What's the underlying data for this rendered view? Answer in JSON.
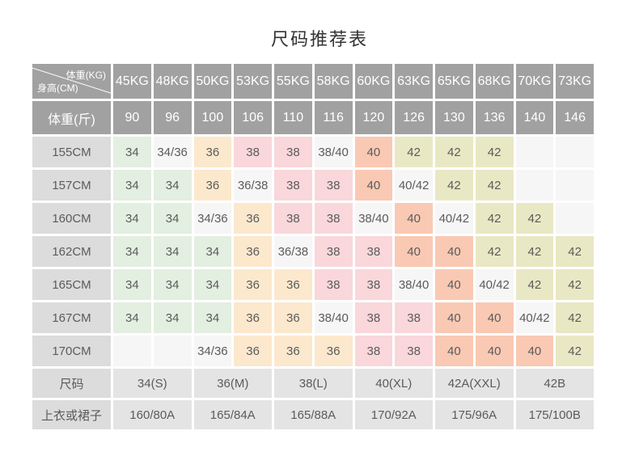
{
  "title": "尺码推荐表",
  "corner": {
    "top_right": "体重(KG)",
    "bottom_left": "身高(CM)"
  },
  "chart_data": {
    "type": "table",
    "title": "尺码推荐表",
    "col_axis": "体重(KG)",
    "row_axis": "身高(CM)",
    "columns_kg": [
      "45KG",
      "48KG",
      "50KG",
      "53KG",
      "55KG",
      "58KG",
      "60KG",
      "63KG",
      "65KG",
      "68KG",
      "70KG",
      "73KG"
    ],
    "weight_jin_label": "体重(斤)",
    "weight_jin_values": [
      "90",
      "96",
      "100",
      "106",
      "110",
      "116",
      "120",
      "126",
      "130",
      "136",
      "140",
      "146"
    ],
    "rows": [
      {
        "height": "155CM",
        "sizes": [
          "34",
          "34/36",
          "36",
          "38",
          "38",
          "38/40",
          "40",
          "42",
          "42",
          "42",
          "",
          ""
        ]
      },
      {
        "height": "157CM",
        "sizes": [
          "34",
          "34",
          "36",
          "36/38",
          "38",
          "38",
          "40",
          "40/42",
          "42",
          "42",
          "",
          ""
        ]
      },
      {
        "height": "160CM",
        "sizes": [
          "34",
          "34",
          "34/36",
          "36",
          "38",
          "38",
          "38/40",
          "40",
          "40/42",
          "42",
          "42",
          ""
        ]
      },
      {
        "height": "162CM",
        "sizes": [
          "34",
          "34",
          "34",
          "36",
          "36/38",
          "38",
          "38",
          "40",
          "40",
          "42",
          "42",
          "42"
        ]
      },
      {
        "height": "165CM",
        "sizes": [
          "34",
          "34",
          "34",
          "36",
          "36",
          "38",
          "38",
          "38/40",
          "40",
          "40/42",
          "42",
          "42"
        ]
      },
      {
        "height": "167CM",
        "sizes": [
          "34",
          "34",
          "34",
          "36",
          "36",
          "38/40",
          "38",
          "38",
          "40",
          "40",
          "40/42",
          "42"
        ]
      },
      {
        "height": "170CM",
        "sizes": [
          "",
          "",
          "34/36",
          "36",
          "36",
          "36",
          "38",
          "38",
          "40",
          "40",
          "40",
          "42"
        ]
      }
    ],
    "size_label": "尺码",
    "size_groups": [
      "34(S)",
      "36(M)",
      "38(L)",
      "40(XL)",
      "42A(XXL)",
      "42B"
    ],
    "garment_label": "上衣或裙子",
    "garment_specs": [
      "160/80A",
      "165/84A",
      "165/88A",
      "170/92A",
      "175/96A",
      "175/100B"
    ]
  },
  "colors": {
    "header_bg": "#a1a1a1",
    "header_text": "#ffffff",
    "row_header_bg": "#dcdcdc",
    "footer_cell_bg": "#e4e4e4",
    "neutral_cell": "#f6f6f6",
    "cell_values": {
      "34": "#e3efe1",
      "36": "#fce8cd",
      "38": "#f9d7db",
      "40": "#f9c9b4",
      "42": "#e9e8c4"
    },
    "cell_text": "#5b5b5b",
    "title_text": "#333333"
  }
}
